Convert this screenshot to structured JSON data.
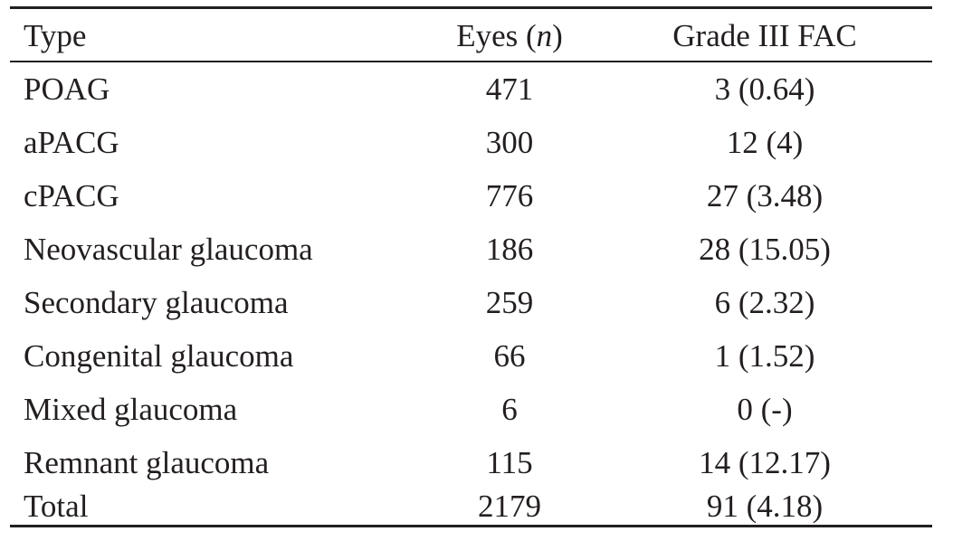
{
  "table": {
    "headers": {
      "type": "Type",
      "eyes_label": "Eyes (",
      "eyes_italic": "n",
      "eyes_close": ")",
      "fac": "Grade III FAC"
    },
    "rows": [
      {
        "type": "POAG",
        "eyes": "471",
        "fac": "3 (0.64)"
      },
      {
        "type": "aPACG",
        "eyes": "300",
        "fac": "12 (4)"
      },
      {
        "type": "cPACG",
        "eyes": "776",
        "fac": "27 (3.48)"
      },
      {
        "type": "Neovascular glaucoma",
        "eyes": "186",
        "fac": "28 (15.05)"
      },
      {
        "type": "Secondary glaucoma",
        "eyes": "259",
        "fac": "6 (2.32)"
      },
      {
        "type": "Congenital glaucoma",
        "eyes": "66",
        "fac": "1 (1.52)"
      },
      {
        "type": "Mixed glaucoma",
        "eyes": "6",
        "fac": "0 (-)"
      },
      {
        "type": "Remnant glaucoma",
        "eyes": "115",
        "fac": "14 (12.17)"
      },
      {
        "type": "Total",
        "eyes": "2179",
        "fac": "91 (4.18)"
      }
    ]
  }
}
